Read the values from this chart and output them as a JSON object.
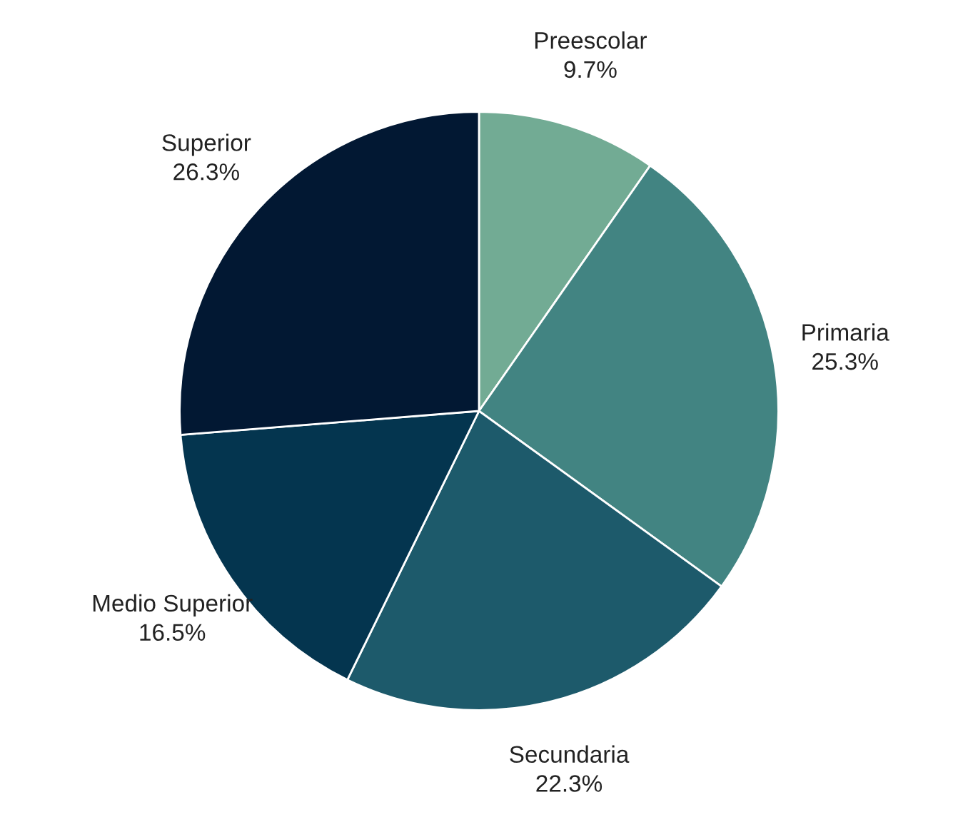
{
  "chart_data": {
    "type": "pie",
    "categories": [
      "Preescolar",
      "Primaria",
      "Secundaria",
      "Medio Superior",
      "Superior"
    ],
    "values": [
      9.7,
      25.3,
      22.3,
      16.5,
      26.3
    ],
    "value_labels": [
      "9.7%",
      "25.3%",
      "22.3%",
      "16.5%",
      "26.3%"
    ],
    "colors": [
      "#72ab94",
      "#428482",
      "#1d5a6b",
      "#04354f",
      "#021833"
    ]
  }
}
